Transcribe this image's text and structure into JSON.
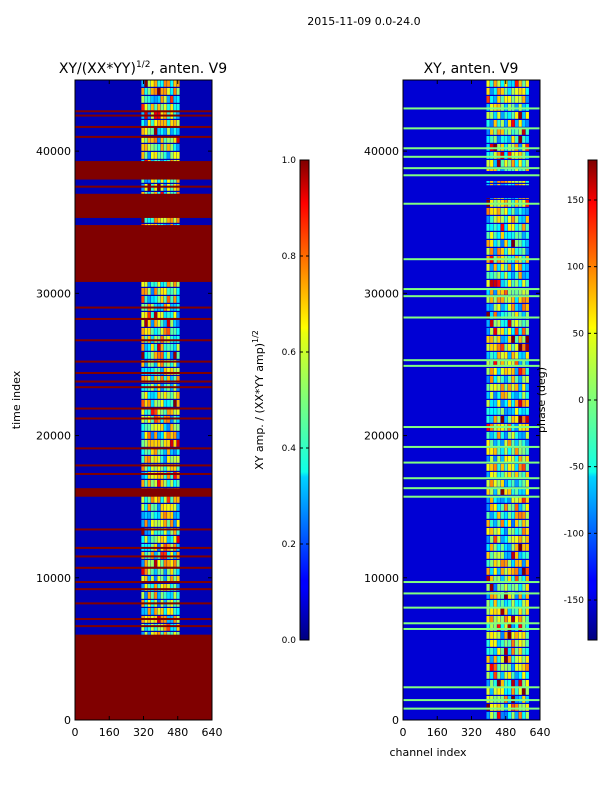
{
  "suptitle": "2015-11-09 0.0-24.0",
  "chart_data": [
    {
      "type": "heatmap",
      "title": "XY/(XX*YY)",
      "title_sup": "1/2",
      "title_suffix": ", anten. V9",
      "xlabel": "",
      "ylabel": "time index",
      "xlim": [
        0,
        640
      ],
      "ylim": [
        0,
        45000
      ],
      "xticks": [
        0,
        160,
        320,
        480,
        640
      ],
      "xtick_labels": [
        "0",
        "160",
        "320",
        "480",
        "640"
      ],
      "yticks": [
        0,
        10000,
        20000,
        30000,
        40000
      ],
      "ytick_labels": [
        "0",
        "10000",
        "20000",
        "30000",
        "40000"
      ],
      "colormap": "jet",
      "colorbar": {
        "label": "XY amp. / (XX*YY amp)",
        "label_sup": "1/2",
        "range": [
          0.0,
          1.0
        ],
        "ticks": [
          0.0,
          0.2,
          0.4,
          0.6,
          0.8,
          1.0
        ],
        "tick_labels": [
          "0.0",
          "0.2",
          "0.4",
          "0.6",
          "0.8",
          "1.0"
        ]
      },
      "background_value": 0.05,
      "active_channel_band": [
        310,
        490
      ],
      "saturated_time_bands": [
        [
          38000,
          39300
        ],
        [
          35300,
          37000
        ],
        [
          30800,
          34800
        ],
        [
          15700,
          16300
        ],
        [
          0,
          6000
        ]
      ],
      "flagged_time_rows": [
        42800,
        42500,
        41700,
        41000,
        37500,
        29000,
        28200,
        26700,
        25200,
        24400,
        23800,
        23400,
        21900,
        21200,
        19100,
        17900,
        17300,
        16000,
        13400,
        12100,
        11500,
        10700,
        9700,
        9200,
        8200,
        7100,
        6600
      ],
      "blank_time_bands": []
    },
    {
      "type": "heatmap",
      "title": "XY, anten. V9",
      "xlabel": "channel index",
      "ylabel": "",
      "xlim": [
        0,
        640
      ],
      "ylim": [
        0,
        45000
      ],
      "xticks": [
        0,
        160,
        320,
        480,
        640
      ],
      "xtick_labels": [
        "0",
        "160",
        "320",
        "480",
        "640"
      ],
      "yticks": [
        0,
        10000,
        20000,
        30000,
        40000
      ],
      "ytick_labels": [
        "0",
        "10000",
        "20000",
        "30000",
        "40000"
      ],
      "colormap": "jet",
      "colorbar": {
        "label": "phase (deg)",
        "range": [
          -180,
          180
        ],
        "ticks": [
          -150,
          -100,
          -50,
          0,
          50,
          100,
          150
        ],
        "tick_labels": [
          "-150",
          "-100",
          "-50",
          "0",
          "50",
          "100",
          "150"
        ]
      },
      "background_value": -150,
      "active_channel_band": [
        390,
        590
      ],
      "saturated_time_bands": [],
      "flagged_time_rows": [
        43000,
        41600,
        40200,
        39600,
        38800,
        38300,
        36300,
        32400,
        30300,
        29800,
        28300,
        25300,
        24900,
        20600,
        19200,
        18100,
        17000,
        16300,
        15700,
        9700,
        8900,
        7900,
        6800,
        6400,
        2300,
        1400,
        800
      ],
      "blank_time_bands": [
        [
          36700,
          37600
        ],
        [
          37900,
          38600
        ]
      ]
    }
  ]
}
